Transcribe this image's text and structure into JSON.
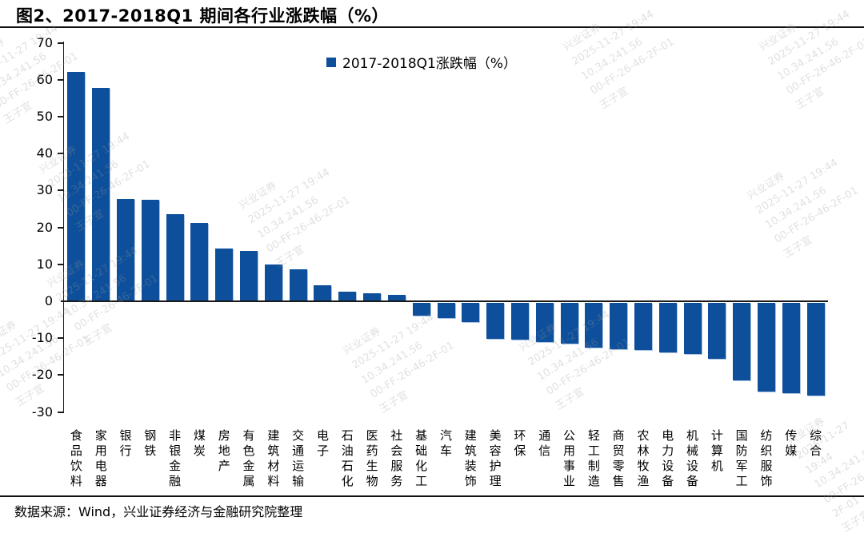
{
  "title": "图2、2017-2018Q1 期间各行业涨跌幅（%）",
  "legend": "2017-2018Q1涨跌幅（%）",
  "source_note": "数据来源：Wind，兴业证券经济与金融研究院整理",
  "colors": {
    "bar": "#0D4F9B",
    "axis": "#1a1a1a",
    "watermark": "#9a9a9a"
  },
  "watermark": {
    "lines": [
      "兴业证券",
      "2025-11-27 19:44",
      "10.34.241.56",
      "00-FF-26-46-2F-01",
      "王子宣"
    ]
  },
  "chart_data": {
    "type": "bar",
    "title": "图2、2017-2018Q1 期间各行业涨跌幅（%）",
    "legend_entries": [
      "2017-2018Q1涨跌幅（%）"
    ],
    "legend_position": "top-center",
    "grid": false,
    "ylim": [
      -30,
      70
    ],
    "ytick_interval": 10,
    "xlabel": "",
    "ylabel": "",
    "categories": [
      "食品饮料",
      "家用电器",
      "银行",
      "钢铁",
      "非银金融",
      "煤炭",
      "房地产",
      "有色金属",
      "建筑材料",
      "交通运输",
      "电子",
      "石油石化",
      "医药生物",
      "社会服务",
      "基础化工",
      "汽车",
      "建筑装饰",
      "美容护理",
      "环保",
      "通信",
      "公用事业",
      "轻工制造",
      "商贸零售",
      "农林牧渔",
      "电力设备",
      "机械设备",
      "计算机",
      "国防军工",
      "纺织服饰",
      "传媒",
      "综合"
    ],
    "values": [
      62.2,
      57.9,
      27.8,
      27.4,
      23.7,
      21.2,
      14.3,
      13.7,
      9.9,
      8.7,
      4.4,
      2.5,
      2.1,
      1.8,
      -3.5,
      -4.2,
      -5.2,
      -9.7,
      -10,
      -10.5,
      -11,
      -12.2,
      -12.6,
      -12.8,
      -13.5,
      -13.9,
      -15.1,
      -21.1,
      -24,
      -24.5,
      -25.2
    ]
  }
}
